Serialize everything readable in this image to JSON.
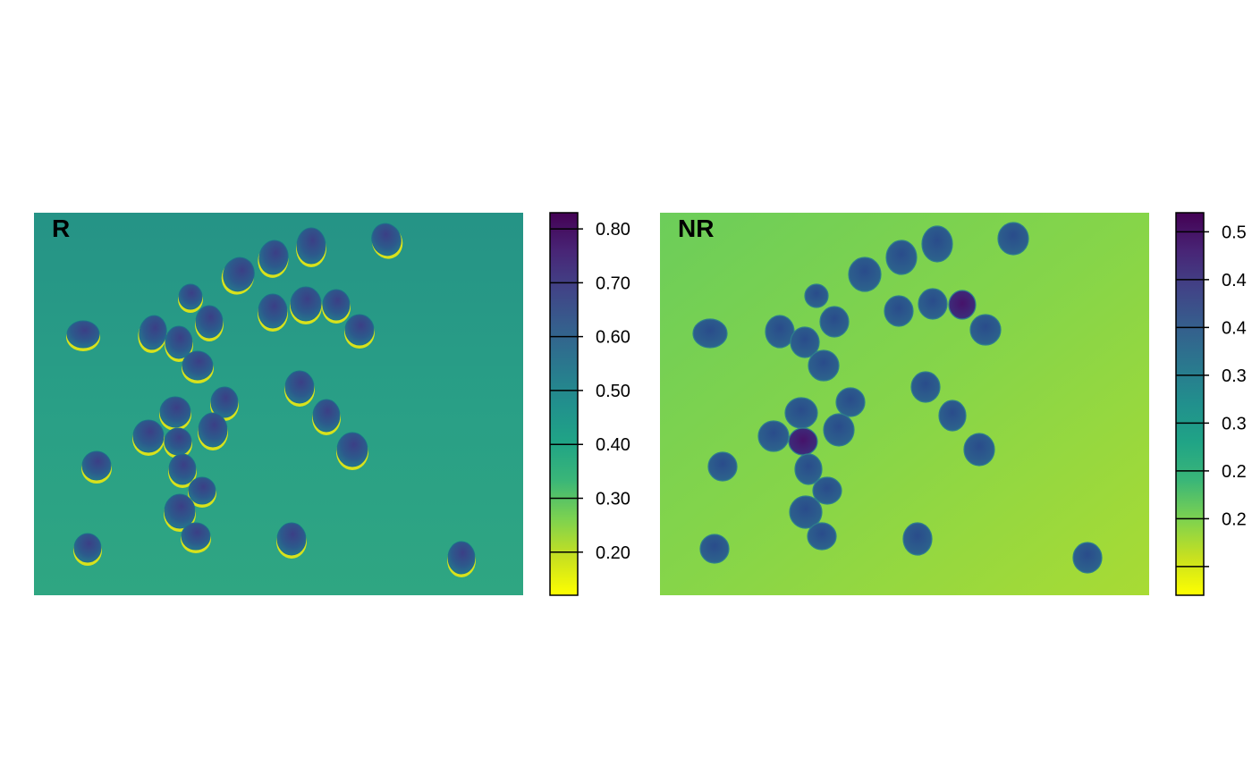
{
  "chart_data": [
    {
      "type": "heatmap",
      "title": "R",
      "description_of_content": "",
      "background_color": "#2a9a88",
      "colormap": [
        "#ffff00",
        "#c7e020",
        "#7cd250",
        "#3ab678",
        "#20a486",
        "#21908d",
        "#2a788e",
        "#355f8d",
        "#414487",
        "#482576",
        "#440154"
      ],
      "colorbar": {
        "min": 0.12,
        "max": 0.83,
        "ticks": [
          0.2,
          0.3,
          0.4,
          0.5,
          0.6,
          0.7,
          0.8
        ],
        "tick_labels": [
          "0.20",
          "0.30",
          "0.40",
          "0.50",
          "0.60",
          "0.70",
          "0.80"
        ]
      },
      "has_bright_rim": true
    },
    {
      "type": "heatmap",
      "title": "NR",
      "background_color": "#78d152",
      "colormap": [
        "#ffff00",
        "#c7e020",
        "#7cd250",
        "#3ab678",
        "#20a486",
        "#21908d",
        "#2a788e",
        "#355f8d",
        "#414487",
        "#482576",
        "#440154"
      ],
      "colorbar": {
        "min": 0.12,
        "max": 0.52,
        "ticks": [
          0.15,
          0.2,
          0.25,
          0.3,
          0.35,
          0.4,
          0.45,
          0.5
        ],
        "tick_labels": [
          "",
          "0.2",
          "0.2",
          "0.3",
          "0.3",
          "0.4",
          "0.4",
          "0.5"
        ]
      },
      "has_bright_rim": false
    }
  ]
}
